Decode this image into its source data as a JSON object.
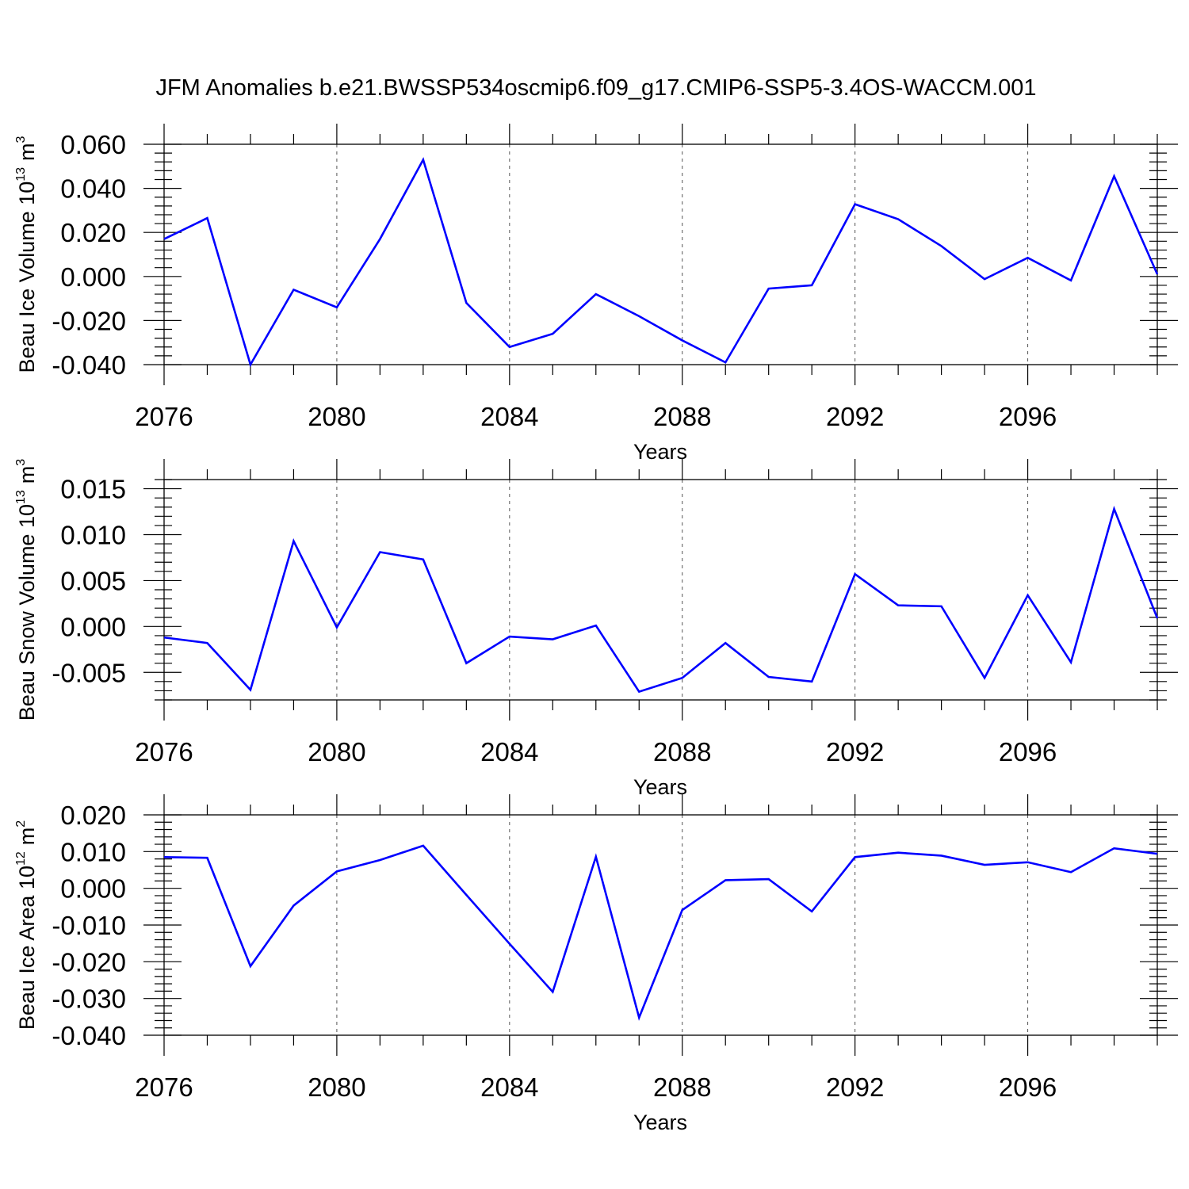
{
  "title": "JFM Anomalies b.e21.BWSSP534oscmip6.f09_g17.CMIP6-SSP5-3.4OS-WACCM.001",
  "colors": {
    "line": "#0000ff",
    "axis": "#000000",
    "grid": "#555555"
  },
  "chart_data": [
    {
      "type": "line",
      "ylabel": {
        "prefix": "Beau Ice Volume 10",
        "exponent": "13",
        "unit": "m",
        "unit_exponent": "3"
      },
      "xlabel": "Years",
      "xlim": [
        2076,
        2099
      ],
      "ylim": [
        -0.04,
        0.06
      ],
      "yticks": [
        0.06,
        0.04,
        0.02,
        0.0,
        -0.02,
        -0.04
      ],
      "yticklabels": [
        "0.060",
        "0.040",
        "0.020",
        "0.000",
        "-0.020",
        "-0.040"
      ],
      "xticks": [
        2076,
        2080,
        2084,
        2088,
        2092,
        2096
      ],
      "xticklabels": [
        "2076",
        "2080",
        "2084",
        "2088",
        "2092",
        "2096"
      ],
      "x": [
        2076,
        2077,
        2078,
        2079,
        2080,
        2081,
        2082,
        2083,
        2084,
        2085,
        2086,
        2087,
        2088,
        2089,
        2090,
        2091,
        2092,
        2093,
        2094,
        2095,
        2096,
        2097,
        2098,
        2099
      ],
      "values": [
        0.017,
        0.0265,
        -0.04,
        -0.006,
        -0.014,
        0.017,
        0.053,
        -0.012,
        -0.032,
        -0.026,
        -0.008,
        -0.018,
        -0.029,
        -0.039,
        -0.0055,
        -0.004,
        0.0328,
        0.026,
        0.0138,
        -0.0012,
        0.0085,
        -0.0018,
        0.0455,
        0.001
      ]
    },
    {
      "type": "line",
      "ylabel": {
        "prefix": "Beau Snow Volume 10",
        "exponent": "13",
        "unit": "m",
        "unit_exponent": "3"
      },
      "xlabel": "Years",
      "xlim": [
        2076,
        2099
      ],
      "ylim": [
        -0.008,
        0.016
      ],
      "yticks": [
        0.015,
        0.01,
        0.005,
        0.0,
        -0.005
      ],
      "yticklabels": [
        "0.015",
        "0.010",
        "0.005",
        "0.000",
        "-0.005"
      ],
      "xticks": [
        2076,
        2080,
        2084,
        2088,
        2092,
        2096
      ],
      "xticklabels": [
        "2076",
        "2080",
        "2084",
        "2088",
        "2092",
        "2096"
      ],
      "x": [
        2076,
        2077,
        2078,
        2079,
        2080,
        2081,
        2082,
        2083,
        2084,
        2085,
        2086,
        2087,
        2088,
        2089,
        2090,
        2091,
        2092,
        2093,
        2094,
        2095,
        2096,
        2097,
        2098,
        2099
      ],
      "values": [
        -0.0012,
        -0.0018,
        -0.0069,
        0.0093,
        -0.0001,
        0.0081,
        0.0073,
        -0.004,
        -0.0011,
        -0.0014,
        0.0001,
        -0.0071,
        -0.0056,
        -0.0018,
        -0.0055,
        -0.006,
        0.0057,
        0.0023,
        0.0022,
        -0.0056,
        0.0034,
        -0.0039,
        0.0128,
        0.0009
      ]
    },
    {
      "type": "line",
      "ylabel": {
        "prefix": "Beau Ice Area 10",
        "exponent": "12",
        "unit": "m",
        "unit_exponent": "2"
      },
      "xlabel": "Years",
      "xlim": [
        2076,
        2099
      ],
      "ylim": [
        -0.04,
        0.02
      ],
      "yticks": [
        0.02,
        0.01,
        0.0,
        -0.01,
        -0.02,
        -0.03,
        -0.04
      ],
      "yticklabels": [
        "0.020",
        "0.010",
        "0.000",
        "-0.010",
        "-0.020",
        "-0.030",
        "-0.040"
      ],
      "xticks": [
        2076,
        2080,
        2084,
        2088,
        2092,
        2096
      ],
      "xticklabels": [
        "2076",
        "2080",
        "2084",
        "2088",
        "2092",
        "2096"
      ],
      "x": [
        2076,
        2077,
        2078,
        2079,
        2080,
        2081,
        2082,
        2083,
        2084,
        2085,
        2086,
        2087,
        2088,
        2089,
        2090,
        2091,
        2092,
        2093,
        2094,
        2095,
        2096,
        2097,
        2098,
        2099
      ],
      "values": [
        0.0085,
        0.0083,
        -0.0212,
        -0.0047,
        0.0046,
        0.0077,
        0.0116,
        -0.0018,
        -0.0151,
        -0.0282,
        0.0086,
        -0.0352,
        -0.0059,
        0.0022,
        0.0025,
        -0.0063,
        0.0085,
        0.0097,
        0.0089,
        0.0064,
        0.0071,
        0.0044,
        0.0109,
        0.0094
      ]
    }
  ]
}
